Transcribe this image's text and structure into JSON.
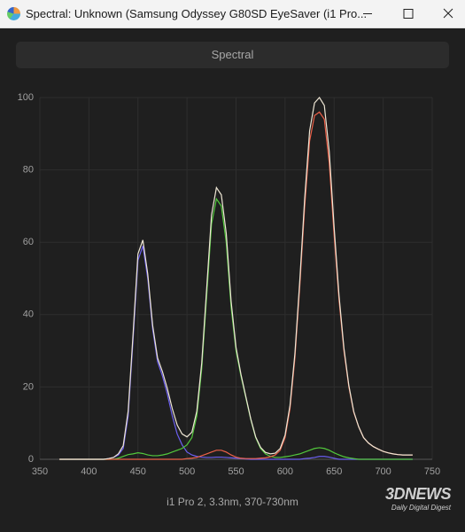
{
  "window": {
    "title": "Spectral: Unknown (Samsung Odyssey G80SD EyeSaver (i1 Pro..."
  },
  "tab": "Spectral",
  "watermark": {
    "logo": "3DNEWS",
    "tagline": "Daily Digital Digest"
  },
  "chart_data": {
    "type": "line",
    "caption": "i1 Pro 2, 3.3nm, 370-730nm",
    "xlim": [
      350,
      750
    ],
    "xticks": [
      350,
      400,
      450,
      500,
      550,
      600,
      650,
      700,
      750
    ],
    "ylim": [
      0,
      100
    ],
    "yticks": [
      0,
      20,
      40,
      60,
      80,
      100
    ],
    "grid": true,
    "x": [
      370,
      375,
      380,
      385,
      390,
      395,
      400,
      405,
      410,
      415,
      420,
      425,
      430,
      435,
      440,
      445,
      450,
      455,
      460,
      465,
      470,
      475,
      480,
      485,
      490,
      495,
      500,
      505,
      510,
      515,
      520,
      525,
      530,
      535,
      540,
      545,
      550,
      555,
      560,
      565,
      570,
      575,
      580,
      585,
      590,
      595,
      600,
      605,
      610,
      615,
      620,
      625,
      630,
      635,
      640,
      645,
      650,
      655,
      660,
      665,
      670,
      675,
      680,
      685,
      690,
      695,
      700,
      705,
      710,
      715,
      720,
      725,
      730
    ],
    "series": [
      {
        "color": "#6b5ff0",
        "values": [
          0,
          0,
          0,
          0,
          0,
          0,
          0,
          0,
          0,
          0,
          0.2,
          0.5,
          1.2,
          3,
          12,
          33,
          55,
          59,
          50,
          36,
          27,
          23,
          18,
          12,
          7,
          4,
          2,
          1.2,
          0.8,
          0.6,
          0.5,
          0.5,
          0.6,
          0.6,
          0.5,
          0.4,
          0.3,
          0.2,
          0.1,
          0,
          0,
          0,
          0,
          0,
          0,
          0,
          0,
          0,
          0,
          0,
          0.2,
          0.3,
          0.5,
          0.8,
          0.8,
          0.6,
          0.3,
          0,
          0,
          0,
          0,
          0,
          0,
          0,
          0,
          0,
          0,
          0,
          0,
          0,
          0,
          0,
          0
        ]
      },
      {
        "color": "#52c83c",
        "values": [
          0,
          0,
          0,
          0,
          0,
          0,
          0,
          0,
          0,
          0,
          0,
          0,
          0.3,
          0.8,
          1.3,
          1.5,
          1.8,
          1.6,
          1.2,
          1,
          1,
          1.2,
          1.5,
          2,
          2.5,
          3,
          4,
          6,
          12,
          25,
          45,
          65,
          72,
          70,
          60,
          42,
          30,
          23,
          17,
          11,
          6,
          3,
          1.5,
          0.8,
          0.5,
          0.5,
          0.7,
          0.9,
          1.2,
          1.5,
          2,
          2.5,
          3,
          3.2,
          3,
          2.5,
          1.8,
          1.2,
          0.7,
          0.4,
          0.2,
          0,
          0,
          0,
          0,
          0,
          0,
          0,
          0,
          0,
          0,
          0,
          0
        ]
      },
      {
        "color": "#ec6048",
        "values": [
          0,
          0,
          0,
          0,
          0,
          0,
          0,
          0,
          0,
          0,
          0,
          0,
          0,
          0,
          0,
          0,
          0,
          0,
          0,
          0,
          0,
          0,
          0,
          0,
          0,
          0,
          0.2,
          0.3,
          0.5,
          1,
          1.5,
          2,
          2.5,
          2.5,
          2,
          1.2,
          0.6,
          0.3,
          0.2,
          0.2,
          0.2,
          0.3,
          0.4,
          0.7,
          1.2,
          2.5,
          6,
          14,
          28,
          48,
          70,
          88,
          95,
          96,
          94,
          82,
          62,
          44,
          30,
          20,
          13,
          9,
          6,
          4.5,
          3.5,
          2.8,
          2.2,
          1.8,
          1.5,
          1.3,
          1.2,
          1.2,
          1.2
        ]
      },
      {
        "color": "#eee6d4",
        "values": [
          0,
          0,
          0,
          0,
          0,
          0,
          0,
          0,
          0,
          0,
          0.2,
          0.5,
          1.5,
          3.8,
          13.3,
          34.5,
          56.8,
          60.6,
          51.2,
          37,
          28,
          24.2,
          19.5,
          14,
          9.5,
          7,
          6.2,
          7.5,
          13.3,
          26.6,
          47,
          67.5,
          75.1,
          73.1,
          62.5,
          43.6,
          30.9,
          23.5,
          17.3,
          11.2,
          6.2,
          3.3,
          1.9,
          1.5,
          1.7,
          3,
          6.7,
          14.9,
          29.2,
          49.5,
          72.2,
          90.8,
          98.5,
          100,
          97.8,
          85.1,
          64.1,
          45.2,
          30.7,
          20.4,
          13.2,
          9,
          6,
          4.5,
          3.5,
          2.8,
          2.2,
          1.8,
          1.5,
          1.3,
          1.2,
          1.2,
          1.2
        ]
      }
    ]
  }
}
